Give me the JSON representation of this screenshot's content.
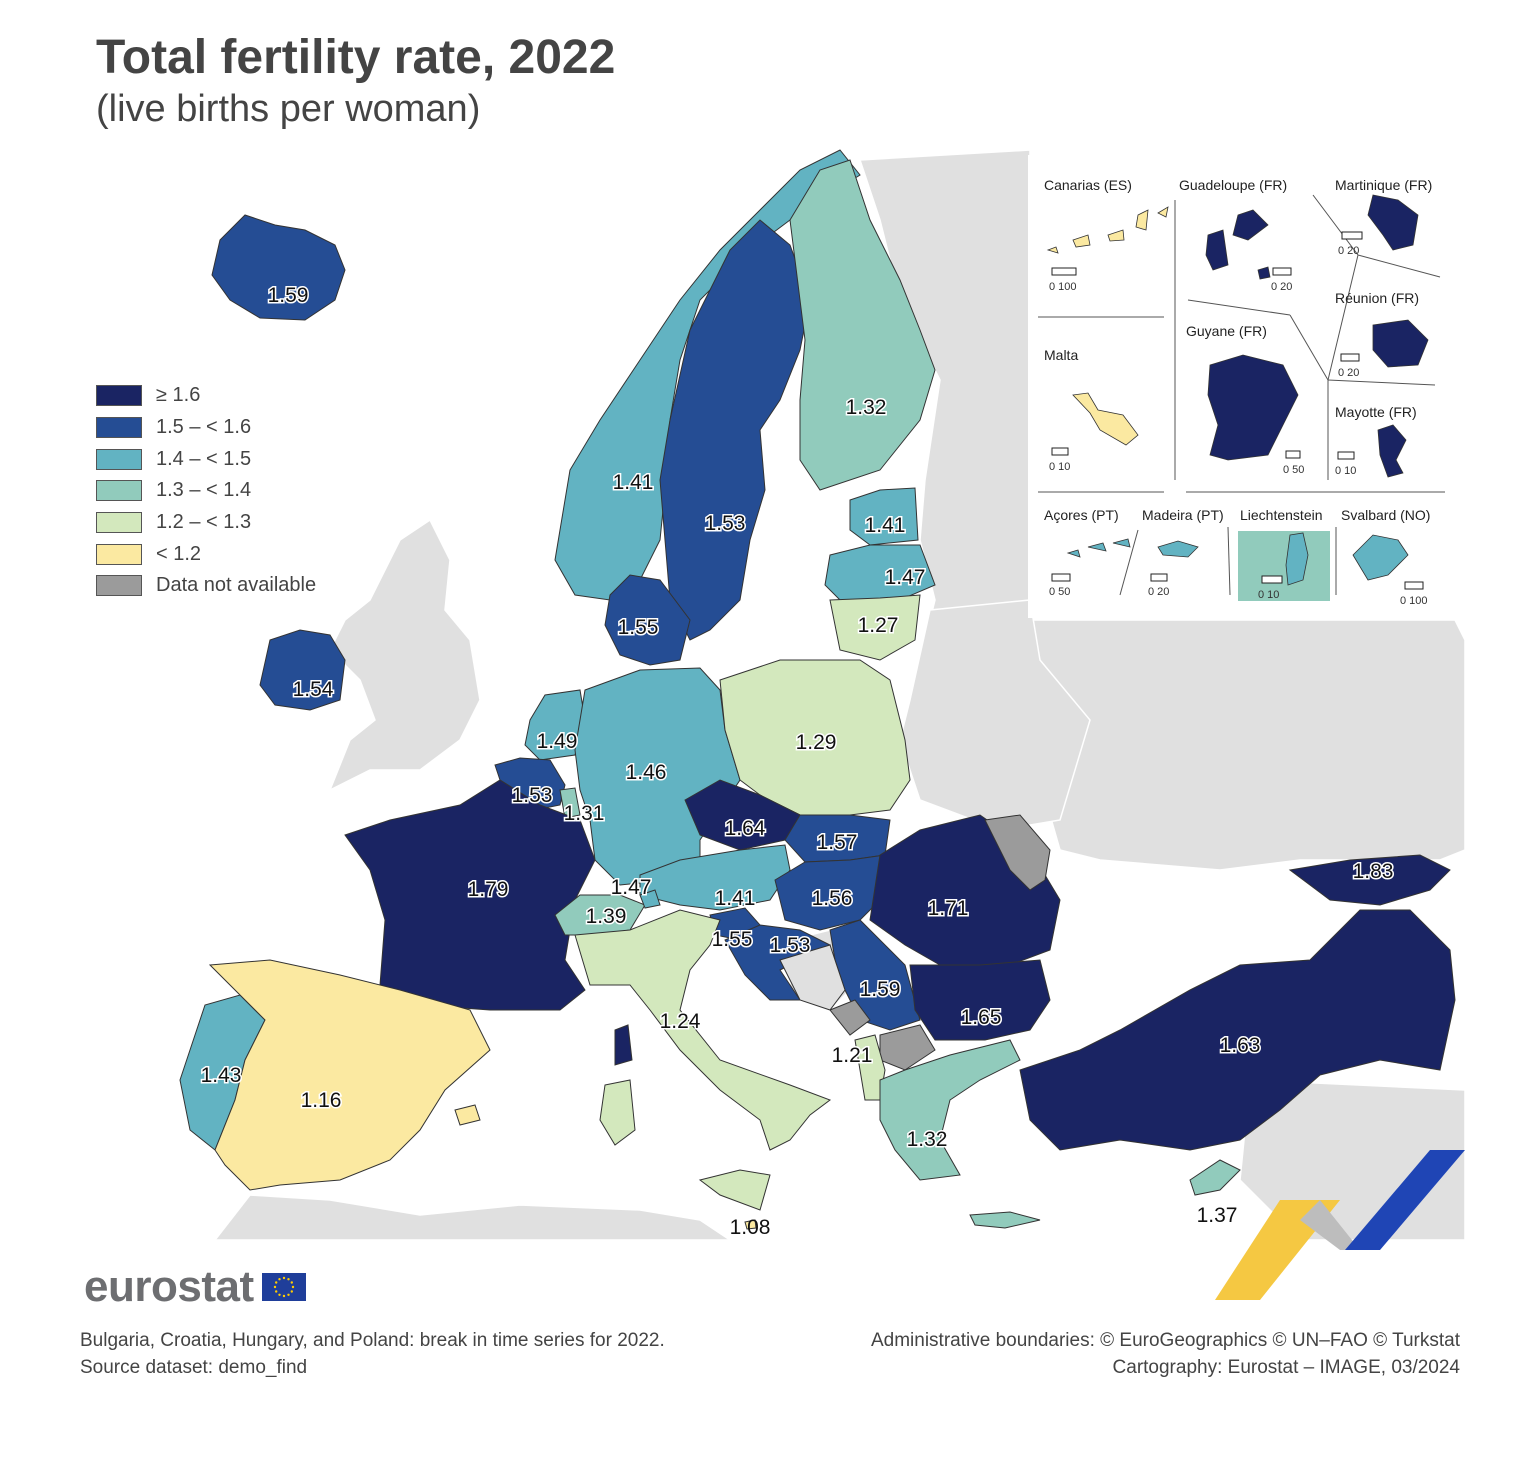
{
  "title": "Total fertility rate, 2022",
  "subtitle": "(live births per woman)",
  "colors": {
    "c1": "#1a2463",
    "c2": "#254d94",
    "c3": "#62b3c2",
    "c4": "#91cbbc",
    "c5": "#d3e8bd",
    "c6": "#fbe9a1",
    "na": "#9b9b9b",
    "other": "#e0e0e0",
    "sea": "#ffffff"
  },
  "legend": [
    {
      "label": "≥ 1.6",
      "color": "#1a2463"
    },
    {
      "label": "1.5 – < 1.6",
      "color": "#254d94"
    },
    {
      "label": "1.4 – < 1.5",
      "color": "#62b3c2"
    },
    {
      "label": "1.3 – < 1.4",
      "color": "#91cbbc"
    },
    {
      "label": "1.2 – < 1.3",
      "color": "#d3e8bd"
    },
    {
      "label": "< 1.2",
      "color": "#fbe9a1"
    },
    {
      "label": "Data not available",
      "color": "#9b9b9b"
    }
  ],
  "map_labels": {
    "iceland": "1.59",
    "norway": "1.41",
    "sweden": "1.53",
    "finland": "1.32",
    "estonia": "1.41",
    "latvia": "1.47",
    "lithuania": "1.27",
    "denmark": "1.55",
    "ireland": "1.54",
    "netherlands": "1.49",
    "belgium": "1.53",
    "luxembourg": "1.31",
    "germany": "1.46",
    "poland": "1.29",
    "czechia": "1.64",
    "slovakia": "1.57",
    "austria": "1.41",
    "hungary": "1.56",
    "romania": "1.71",
    "france": "1.79",
    "liechtenstein": "1.47",
    "switzerland": "1.39",
    "slovenia": "1.55",
    "croatia": "1.53",
    "serbia": "1.59",
    "bulgaria": "1.65",
    "ukraine": "1.83",
    "italy": "1.24",
    "albania": "1.21",
    "portugal": "1.43",
    "spain": "1.16",
    "greece": "1.32",
    "turkey": "1.63",
    "cyprus": "1.37",
    "malta": "1.08"
  },
  "insets": {
    "canarias": {
      "label": "Canarias (ES)",
      "scale": "0   100"
    },
    "guadeloupe": {
      "label": "Guadeloupe (FR)",
      "scale": "0   20"
    },
    "martinique": {
      "label": "Martinique (FR)",
      "scale": "0   20"
    },
    "reunion": {
      "label": "Réunion (FR)",
      "scale": "0   20"
    },
    "malta": {
      "label": "Malta",
      "scale": "0   10"
    },
    "guyane": {
      "label": "Guyane (FR)",
      "scale": "0 50"
    },
    "mayotte": {
      "label": "Mayotte (FR)",
      "scale": "0   10"
    },
    "acores": {
      "label": "Açores (PT)",
      "scale": "0   50"
    },
    "madeira": {
      "label": "Madeira (PT)",
      "scale": "0  20"
    },
    "liechtenstein": {
      "label": "Liechtenstein",
      "scale": "0   10"
    },
    "svalbard": {
      "label": "Svalbard (NO)",
      "scale": "0 100"
    }
  },
  "logo": {
    "text": "eurostat"
  },
  "footer": {
    "note1": "Bulgaria, Croatia, Hungary, and Poland: break in time series for 2022.",
    "note2": "Source dataset: demo_find",
    "credit1": "Administrative boundaries: © EuroGeographics © UN–FAO © Turkstat",
    "credit2": "Cartography: Eurostat – IMAGE, 03/2024"
  }
}
